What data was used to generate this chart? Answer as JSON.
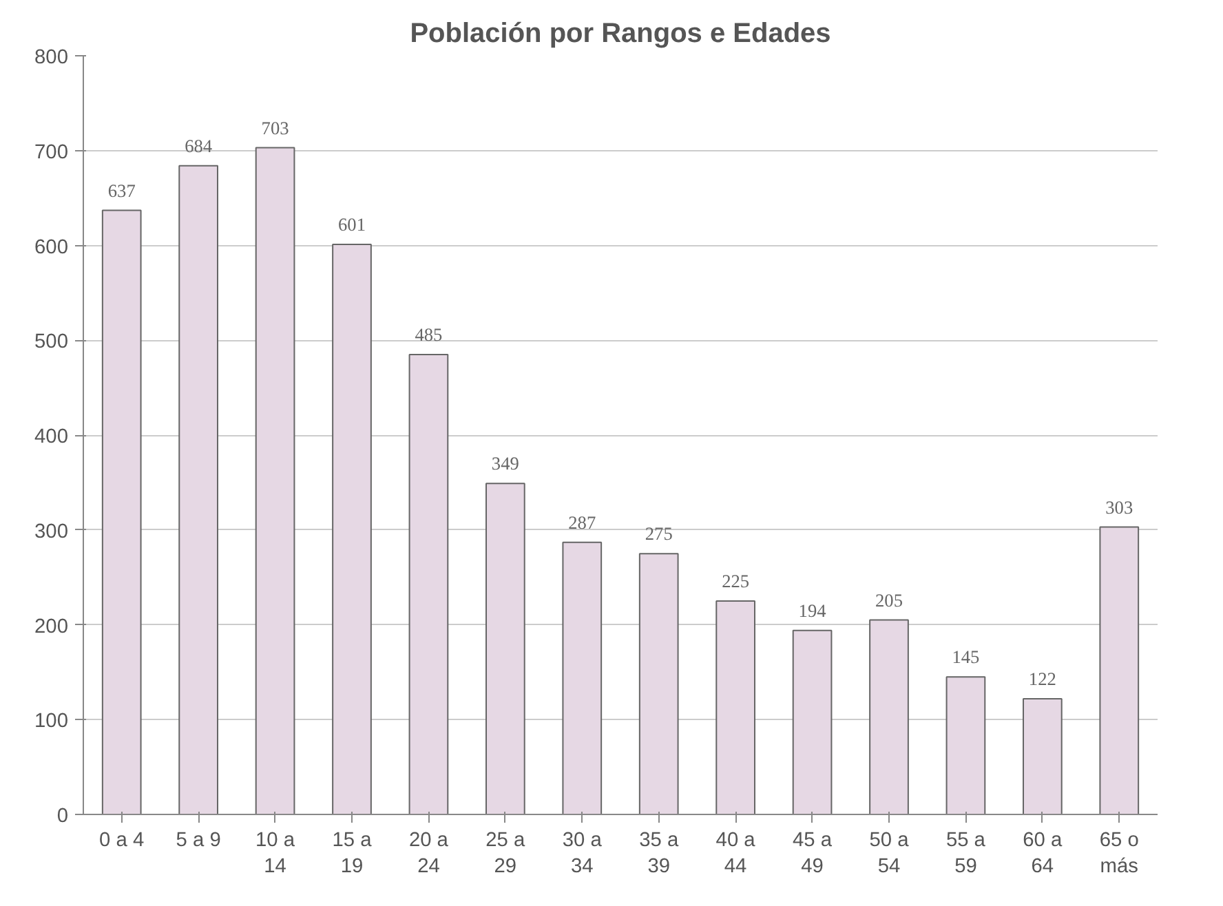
{
  "chart_data": {
    "type": "bar",
    "title": "Población por Rangos e Edades",
    "categories": [
      "0 a 4",
      "5 a 9",
      "10 a 14",
      "15 a 19",
      "20 a 24",
      "25 a 29",
      "30 a 34",
      "35 a 39",
      "40 a 44",
      "45 a 49",
      "50 a 54",
      "55 a 59",
      "60 a 64",
      "65 o más"
    ],
    "values": [
      637,
      684,
      703,
      601,
      485,
      349,
      287,
      275,
      225,
      194,
      205,
      145,
      122,
      303
    ],
    "color": "#e6d8e4",
    "ylim": [
      0,
      800
    ],
    "yticks": [
      0,
      100,
      200,
      300,
      400,
      500,
      600,
      700,
      800
    ],
    "grid": "y",
    "data_labels": true
  }
}
